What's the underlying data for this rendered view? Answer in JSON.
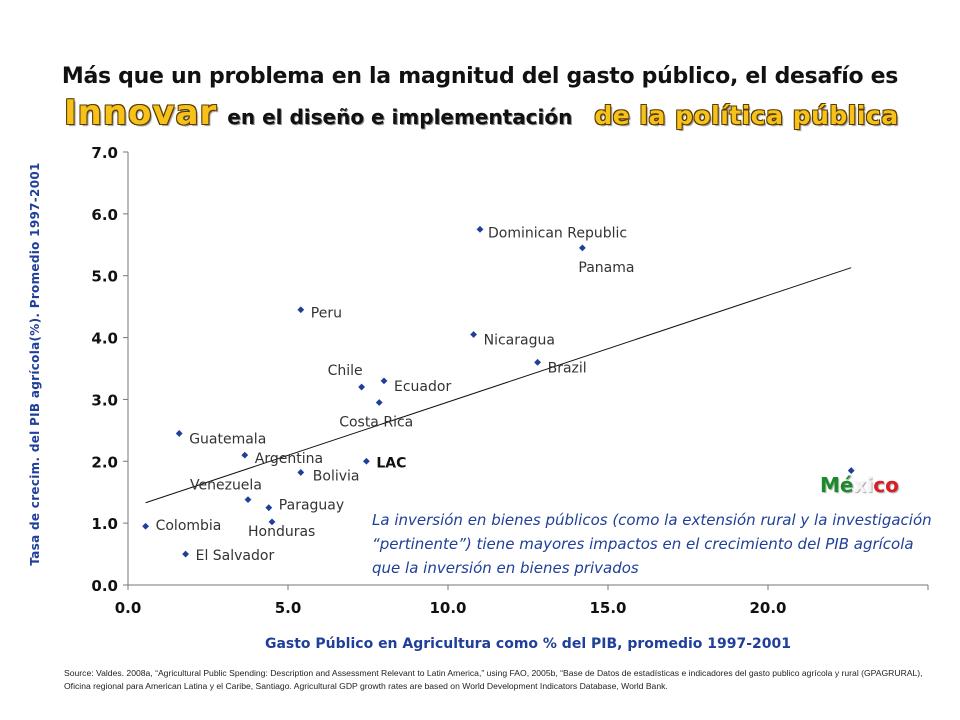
{
  "title": {
    "line1": "Más que un problema en la magnitud del gasto público,  el desafío es",
    "innovar": "Innovar",
    "middle": "en el diseño e implementación",
    "politica": "de la política pública"
  },
  "annotation": "La inversión en bienes públicos (como la extensión rural y la investigación “pertinente”) tiene mayores impactos en el crecimiento del PIB agrícola que la inversión en bienes privados",
  "source": "Source: Valdes. 2008a, “Agricultural Public Spending: Description and Assessment Relevant to Latin America,” using FAO, 2005b, “Base de Datos de estadísticas e indicadores del gasto publico agrícola y rural (GPAGRURAL), Oficina regional para American Latina y el Caribe, Santiago. Agricultural GDP growth rates are based on World Development Indicators Database, World Bank.",
  "mexico": {
    "label_parts": [
      {
        "text": "Mé",
        "color": "#1a8a2a"
      },
      {
        "text": "xi",
        "color": "#f4f4f4"
      },
      {
        "text": "co",
        "color": "#d81f26"
      }
    ]
  },
  "chart_data": {
    "type": "scatter",
    "xlabel": "Gasto Público en Agricultura como % del PIB, promedio 1997-2001",
    "ylabel": "Tasa de crecim. del PIB agrícola(%). Promedio 1997-2001",
    "xlim": [
      0,
      25
    ],
    "ylim": [
      0,
      7
    ],
    "x_ticks": [
      "0.0",
      "5.0",
      "10.0",
      "15.0",
      "20.0"
    ],
    "y_ticks": [
      "0.0",
      "1.0",
      "2.0",
      "3.0",
      "4.0",
      "5.0",
      "6.0",
      "7.0"
    ],
    "grid": false,
    "marker_color": "#1f3f9a",
    "points": [
      {
        "label": "Dominican Republic",
        "x": 11.0,
        "y": 5.75,
        "bold": false
      },
      {
        "label": "Panama",
        "x": 14.2,
        "y": 5.45,
        "bold": false
      },
      {
        "label": "Peru",
        "x": 5.4,
        "y": 4.45,
        "bold": false
      },
      {
        "label": "Nicaragua",
        "x": 10.8,
        "y": 4.05,
        "bold": false
      },
      {
        "label": "Brazil",
        "x": 12.8,
        "y": 3.6,
        "bold": false
      },
      {
        "label": "Chile",
        "x": 7.3,
        "y": 3.2,
        "bold": false
      },
      {
        "label": "Ecuador",
        "x": 8.0,
        "y": 3.3,
        "bold": false
      },
      {
        "label": "Costa Rica",
        "x": 7.85,
        "y": 2.95,
        "bold": false
      },
      {
        "label": "Guatemala",
        "x": 1.6,
        "y": 2.45,
        "bold": false
      },
      {
        "label": "Argentina",
        "x": 3.65,
        "y": 2.1,
        "bold": false
      },
      {
        "label": "LAC",
        "x": 7.45,
        "y": 2.0,
        "bold": true
      },
      {
        "label": "Bolivia",
        "x": 5.4,
        "y": 1.82,
        "bold": false
      },
      {
        "label": "Venezuela",
        "x": 3.75,
        "y": 1.38,
        "bold": false
      },
      {
        "label": "Paraguay",
        "x": 4.4,
        "y": 1.25,
        "bold": false
      },
      {
        "label": "Colombia",
        "x": 0.55,
        "y": 0.95,
        "bold": false
      },
      {
        "label": "Honduras",
        "x": 4.5,
        "y": 1.02,
        "bold": false
      },
      {
        "label": "El Salvador",
        "x": 1.8,
        "y": 0.5,
        "bold": false
      },
      {
        "label": "México",
        "x": 22.6,
        "y": 1.85,
        "bold": false
      }
    ],
    "trendline": {
      "x": [
        0.55,
        22.6
      ],
      "y": [
        1.33,
        5.13
      ],
      "color": "#111111"
    }
  }
}
